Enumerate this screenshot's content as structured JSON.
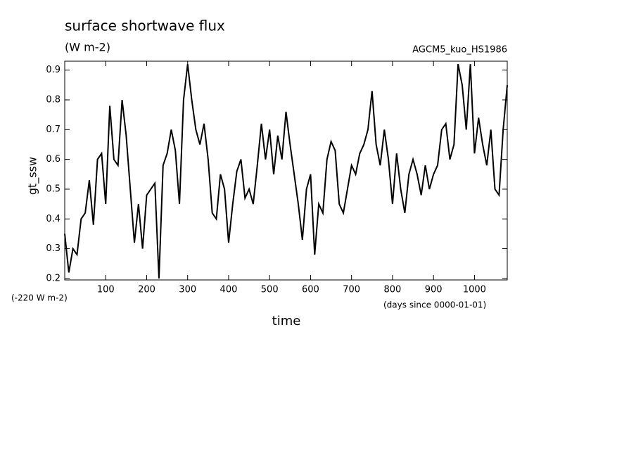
{
  "chart_data": {
    "type": "line",
    "title": "surface shortwave flux",
    "subtitle": "(W m-2)",
    "annotation_right": "AGCM5_kuo_HS1986",
    "annotation_offset": "(-220 W m-2)",
    "x_label": "time",
    "x_units": "(days since 0000-01-01)",
    "y_label": "gt_ssw",
    "color": "#000000",
    "xlim": [
      0,
      1080
    ],
    "ylim": [
      0.195,
      0.93
    ],
    "xticks": [
      100,
      200,
      300,
      400,
      500,
      600,
      700,
      800,
      900,
      1000
    ],
    "yticks": [
      0.2,
      0.3,
      0.4,
      0.5,
      0.6,
      0.7,
      0.8,
      0.9
    ],
    "x": [
      0,
      10,
      20,
      30,
      40,
      50,
      60,
      70,
      80,
      90,
      100,
      110,
      120,
      130,
      140,
      150,
      160,
      170,
      180,
      190,
      200,
      210,
      220,
      230,
      240,
      250,
      260,
      270,
      280,
      290,
      300,
      310,
      320,
      330,
      340,
      350,
      360,
      370,
      380,
      390,
      400,
      410,
      420,
      430,
      440,
      450,
      460,
      470,
      480,
      490,
      500,
      510,
      520,
      530,
      540,
      550,
      560,
      570,
      580,
      590,
      600,
      610,
      620,
      630,
      640,
      650,
      660,
      670,
      680,
      690,
      700,
      710,
      720,
      730,
      740,
      750,
      760,
      770,
      780,
      790,
      800,
      810,
      820,
      830,
      840,
      850,
      860,
      870,
      880,
      890,
      900,
      910,
      920,
      930,
      940,
      950,
      960,
      970,
      980,
      990,
      1000,
      1010,
      1020,
      1030,
      1040,
      1050,
      1060,
      1070,
      1080
    ],
    "values": [
      0.35,
      0.22,
      0.3,
      0.28,
      0.4,
      0.42,
      0.53,
      0.38,
      0.6,
      0.62,
      0.45,
      0.78,
      0.6,
      0.58,
      0.8,
      0.68,
      0.5,
      0.32,
      0.45,
      0.3,
      0.48,
      0.5,
      0.52,
      0.2,
      0.58,
      0.62,
      0.7,
      0.63,
      0.45,
      0.8,
      0.92,
      0.8,
      0.7,
      0.65,
      0.72,
      0.6,
      0.42,
      0.4,
      0.55,
      0.5,
      0.32,
      0.45,
      0.56,
      0.6,
      0.47,
      0.5,
      0.45,
      0.58,
      0.72,
      0.6,
      0.7,
      0.55,
      0.68,
      0.6,
      0.76,
      0.65,
      0.55,
      0.45,
      0.33,
      0.5,
      0.55,
      0.28,
      0.45,
      0.42,
      0.6,
      0.66,
      0.63,
      0.45,
      0.42,
      0.5,
      0.58,
      0.55,
      0.62,
      0.65,
      0.7,
      0.83,
      0.65,
      0.58,
      0.7,
      0.6,
      0.45,
      0.62,
      0.5,
      0.42,
      0.55,
      0.6,
      0.55,
      0.48,
      0.58,
      0.5,
      0.55,
      0.58,
      0.7,
      0.72,
      0.6,
      0.65,
      0.92,
      0.85,
      0.7,
      0.92,
      0.62,
      0.74,
      0.65,
      0.58,
      0.7,
      0.5,
      0.48,
      0.7,
      0.85
    ]
  }
}
